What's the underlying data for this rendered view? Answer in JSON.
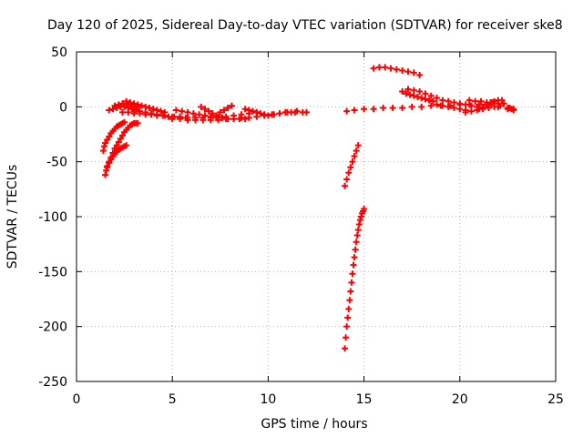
{
  "chart_data": {
    "type": "scatter",
    "title": "Day 120 of 2025, Sidereal Day-to-day VTEC variation (SDTVAR) for receiver ske8",
    "xlabel": "GPS time / hours",
    "ylabel": "SDTVAR / TECUs",
    "xlim": [
      0,
      25
    ],
    "ylim": [
      -250,
      50
    ],
    "x_ticks": [
      "0",
      "5",
      "10",
      "15",
      "20",
      "25"
    ],
    "y_ticks": [
      "50",
      "0",
      "-50",
      "-100",
      "-150",
      "-200",
      "-250"
    ],
    "grid": true,
    "marker": "plus",
    "color": "#ff0000",
    "series": [
      {
        "x": [
          1.5,
          1.55,
          1.6,
          1.7,
          1.8,
          1.9,
          2.0,
          2.1,
          2.2,
          2.3,
          2.4,
          2.5,
          2.6,
          2.7,
          2.8,
          2.9,
          3.0,
          3.1,
          3.2
        ],
        "y": [
          -62,
          -58,
          -54,
          -50,
          -46,
          -42,
          -38,
          -35,
          -32,
          -29,
          -26,
          -23,
          -21,
          -19,
          -17,
          -16,
          -15,
          -15,
          -15
        ]
      },
      {
        "x": [
          1.4,
          1.45,
          1.5,
          1.6,
          1.7,
          1.8,
          1.9,
          2.0,
          2.1,
          2.2,
          2.3,
          2.4,
          2.5
        ],
        "y": [
          -40,
          -36,
          -33,
          -30,
          -27,
          -24,
          -22,
          -20,
          -18,
          -17,
          -16,
          -15,
          -14
        ]
      },
      {
        "x": [
          1.6,
          1.7,
          1.8,
          1.9,
          2.0,
          2.1,
          2.2,
          2.3,
          2.4,
          2.5,
          2.6
        ],
        "y": [
          -55,
          -51,
          -48,
          -45,
          -43,
          -41,
          -39,
          -38,
          -37,
          -36,
          -35
        ]
      },
      {
        "x": [
          1.7,
          1.9,
          2.1,
          2.3,
          2.5,
          2.7,
          2.9,
          3.1,
          3.3,
          3.6,
          3.9,
          4.2,
          4.6,
          5.0,
          5.4,
          5.8,
          6.2,
          6.6,
          7.0,
          7.4,
          7.8,
          8.2,
          8.6,
          9.0,
          9.4
        ],
        "y": [
          -3,
          -2,
          -1,
          0,
          0,
          -1,
          -2,
          -3,
          -4,
          -5,
          -6,
          -7,
          -8,
          -9,
          -9,
          -10,
          -10,
          -10,
          -10,
          -9,
          -9,
          -8,
          -7,
          -6,
          -5
        ]
      },
      {
        "x": [
          2.0,
          2.2,
          2.4,
          2.6,
          2.8,
          3.0,
          3.2
        ],
        "y": [
          1,
          2,
          3,
          3,
          2,
          1,
          0
        ]
      },
      {
        "x": [
          2.6,
          2.8,
          3.0,
          3.2,
          3.4,
          3.6,
          3.8,
          4.0,
          4.2,
          4.4,
          4.6
        ],
        "y": [
          5,
          4,
          3,
          2,
          1,
          0,
          -1,
          -2,
          -3,
          -4,
          -5
        ]
      },
      {
        "x": [
          2.4,
          2.7,
          3.0,
          3.3,
          3.6,
          3.9,
          4.2,
          4.5,
          4.8,
          5.1,
          5.4,
          5.7
        ],
        "y": [
          -5,
          -5,
          -6,
          -6,
          -7,
          -7,
          -8,
          -8,
          -9,
          -9,
          -10,
          -10
        ]
      },
      {
        "x": [
          5.2,
          5.5,
          5.8,
          6.1,
          6.4,
          6.7,
          7.0,
          7.3,
          7.6,
          7.9,
          8.2,
          8.5,
          8.8
        ],
        "y": [
          -3,
          -4,
          -5,
          -6,
          -7,
          -8,
          -9,
          -10,
          -10,
          -11,
          -11,
          -11,
          -11
        ]
      },
      {
        "x": [
          5.0,
          5.4,
          5.8,
          6.2,
          6.6,
          7.0,
          7.4,
          7.8,
          8.2,
          8.6,
          9.0,
          9.4,
          9.8,
          10.2,
          10.6,
          11.0,
          11.4,
          11.8,
          12.0
        ],
        "y": [
          -11,
          -11,
          -12,
          -12,
          -12,
          -12,
          -12,
          -11,
          -11,
          -10,
          -10,
          -9,
          -8,
          -7,
          -6,
          -5,
          -5,
          -5,
          -5
        ]
      },
      {
        "x": [
          6.5,
          6.7,
          6.9,
          7.1,
          7.3
        ],
        "y": [
          0,
          -2,
          -4,
          -6,
          -8
        ]
      },
      {
        "x": [
          7.5,
          7.7,
          7.9,
          8.1
        ],
        "y": [
          -5,
          -3,
          -1,
          1
        ]
      },
      {
        "x": [
          8.8,
          9.0,
          9.2,
          9.4,
          9.6,
          9.8
        ],
        "y": [
          -2,
          -3,
          -4,
          -5,
          -6,
          -7
        ]
      },
      {
        "x": [
          10.0,
          10.3,
          10.6,
          10.9,
          11.2,
          11.5
        ],
        "y": [
          -8,
          -7,
          -6,
          -5,
          -5,
          -4
        ]
      },
      {
        "x": [
          14.0,
          14.1,
          14.2,
          14.3,
          14.4,
          14.5,
          14.6,
          14.7
        ],
        "y": [
          -72,
          -66,
          -60,
          -55,
          -50,
          -45,
          -40,
          -35
        ]
      },
      {
        "x": [
          14.0,
          14.05,
          14.1,
          14.15,
          14.2,
          14.25,
          14.3,
          14.35,
          14.4,
          14.45,
          14.5,
          14.55,
          14.6,
          14.65,
          14.7,
          14.75,
          14.8,
          14.85,
          14.9,
          14.95,
          15.0
        ],
        "y": [
          -220,
          -210,
          -200,
          -192,
          -184,
          -176,
          -168,
          -160,
          -152,
          -144,
          -137,
          -130,
          -123,
          -117,
          -112,
          -107,
          -103,
          -100,
          -97,
          -95,
          -93
        ]
      },
      {
        "x": [
          14.1,
          14.5,
          15.0,
          15.5,
          16.0,
          16.5,
          17.0,
          17.5,
          18.0,
          18.5,
          19.0,
          19.5,
          20.0,
          20.5,
          21.0,
          21.5,
          22.0,
          22.5,
          22.8
        ],
        "y": [
          -4,
          -3,
          -2,
          -2,
          -1,
          -1,
          -1,
          0,
          0,
          1,
          1,
          1,
          2,
          2,
          2,
          1,
          0,
          -1,
          -2
        ]
      },
      {
        "x": [
          15.5,
          15.8,
          16.1,
          16.4,
          16.7,
          17.0,
          17.3,
          17.6,
          17.9
        ],
        "y": [
          35,
          36,
          36,
          35,
          34,
          33,
          32,
          31,
          29
        ]
      },
      {
        "x": [
          17.0,
          17.2,
          17.4,
          17.6,
          17.8,
          18.0,
          18.2,
          18.4,
          18.6
        ],
        "y": [
          14,
          12,
          11,
          10,
          9,
          8,
          7,
          6,
          5
        ]
      },
      {
        "x": [
          17.3,
          17.6,
          17.9,
          18.2,
          18.5,
          18.8,
          19.1,
          19.4,
          19.7,
          20.0,
          20.3,
          20.6,
          20.9,
          21.2
        ],
        "y": [
          16,
          15,
          14,
          12,
          10,
          8,
          6,
          5,
          4,
          3,
          2,
          1,
          0,
          -1
        ]
      },
      {
        "x": [
          18.8,
          19.1,
          19.4,
          19.7,
          20.0,
          20.3
        ],
        "y": [
          2,
          1,
          0,
          -1,
          -2,
          -3
        ]
      },
      {
        "x": [
          20.3,
          20.6,
          20.9,
          21.2,
          21.5,
          21.8,
          22.1
        ],
        "y": [
          -5,
          -4,
          -3,
          -2,
          -1,
          0,
          1
        ]
      },
      {
        "x": [
          20.5,
          20.8,
          21.1,
          21.4,
          21.7,
          22.0,
          22.3
        ],
        "y": [
          6,
          5,
          5,
          4,
          4,
          3,
          3
        ]
      },
      {
        "x": [
          21.0,
          21.2,
          21.4,
          21.6,
          21.8,
          22.0,
          22.2
        ],
        "y": [
          -2,
          0,
          2,
          4,
          5,
          6,
          6
        ]
      },
      {
        "x": [
          22.5,
          22.6,
          22.7,
          22.8
        ],
        "y": [
          -2,
          -1,
          -2,
          -3
        ]
      }
    ]
  }
}
